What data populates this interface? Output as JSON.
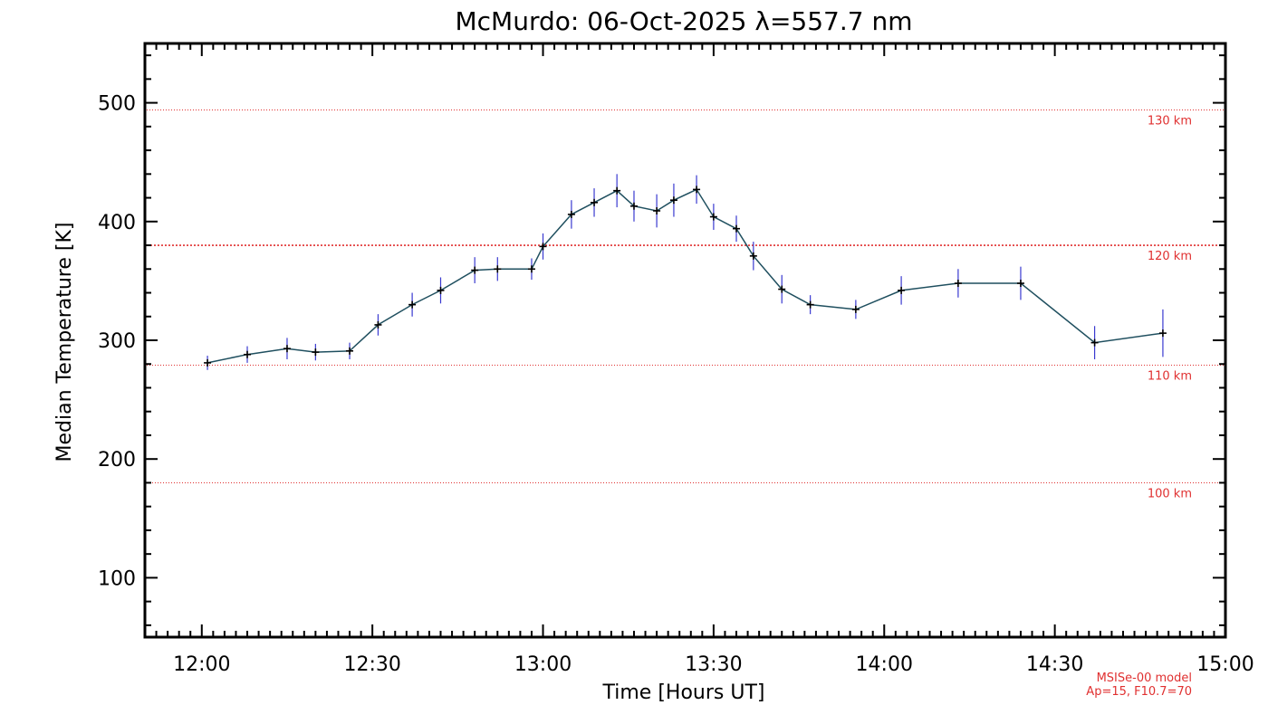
{
  "chart_data": {
    "type": "line",
    "title": "McMurdo: 06-Oct-2025 λ=557.7 nm",
    "xlabel": "Time [Hours UT]",
    "ylabel": "Median Temperature [K]",
    "xlim": [
      "11:50",
      "15:00"
    ],
    "ylim": [
      50,
      550
    ],
    "x_ticks": [
      "12:00",
      "12:30",
      "13:00",
      "13:30",
      "14:00",
      "14:30",
      "15:00"
    ],
    "y_ticks": [
      100,
      200,
      300,
      400,
      500
    ],
    "grid": false,
    "colors": {
      "line": "#1f4f5f",
      "error_bars": "#3a3ad0",
      "markers": "#000000",
      "reference": "#e03030"
    },
    "series": [
      {
        "x": [
          "12:01",
          "12:08",
          "12:15",
          "12:20",
          "12:26",
          "12:31",
          "12:37",
          "12:42",
          "12:48",
          "12:52",
          "12:58",
          "13:00",
          "13:05",
          "13:09",
          "13:13",
          "13:16",
          "13:20",
          "13:23",
          "13:27",
          "13:30",
          "13:34",
          "13:37",
          "13:42",
          "13:47",
          "13:55",
          "14:03",
          "14:13",
          "14:24",
          "14:37",
          "14:49"
        ],
        "values": [
          281,
          288,
          293,
          290,
          291,
          313,
          330,
          342,
          359,
          360,
          360,
          379,
          406,
          416,
          426,
          413,
          409,
          418,
          427,
          404,
          394,
          371,
          343,
          330,
          326,
          342,
          348,
          348,
          298,
          306
        ],
        "errors": [
          6,
          7,
          9,
          7,
          7,
          9,
          10,
          11,
          11,
          10,
          9,
          11,
          12,
          12,
          14,
          13,
          14,
          14,
          12,
          11,
          11,
          12,
          12,
          8,
          8,
          12,
          12,
          14,
          14,
          20
        ]
      }
    ],
    "reference_lines": [
      {
        "label": "130 km",
        "y": 494,
        "style": "dotted"
      },
      {
        "label": "120 km",
        "y": 380,
        "style": "dashed"
      },
      {
        "label": "110 km",
        "y": 279,
        "style": "dotted"
      },
      {
        "label": "100 km",
        "y": 180,
        "style": "dotted"
      }
    ],
    "annotations": [
      "MSISe-00 model",
      "Ap=15, F10.7=70"
    ]
  }
}
